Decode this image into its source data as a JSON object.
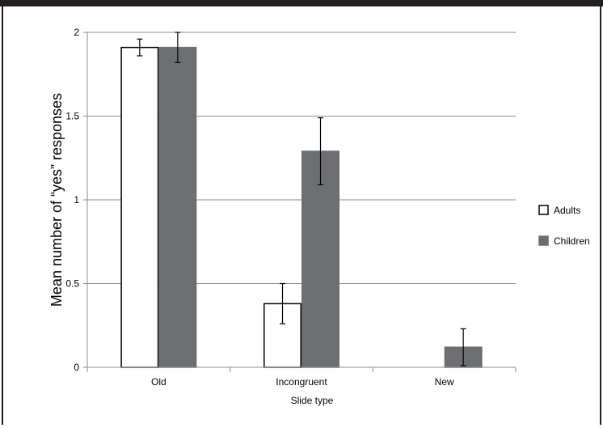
{
  "chart_data": {
    "type": "bar",
    "categories": [
      "Old",
      "Incongruent",
      "New"
    ],
    "series": [
      {
        "name": "Adults",
        "values": [
          1.91,
          0.38,
          0.0
        ],
        "errors": [
          0.05,
          0.12,
          0.0
        ],
        "color": "#ffffff",
        "stroke": "#000000"
      },
      {
        "name": "Children",
        "values": [
          1.91,
          1.29,
          0.12
        ],
        "errors": [
          0.09,
          0.2,
          0.11
        ],
        "color": "#6d6e71",
        "stroke": "#6d6e71"
      }
    ],
    "yticks": [
      "0",
      "0.5",
      "1",
      "1.5",
      "2"
    ],
    "ylim": [
      0,
      2
    ],
    "xlabel": "Slide type",
    "ylabel": "Mean number of “yes” responses",
    "grid": true,
    "legend_position": "right"
  }
}
